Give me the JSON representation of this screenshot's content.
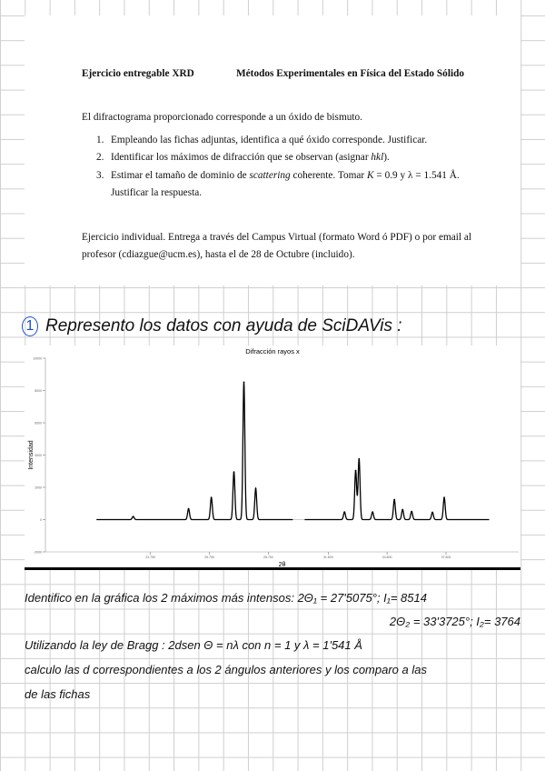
{
  "document": {
    "header_left": "Ejercicio entregable XRD",
    "header_right": "Métodos Experimentales en Física del Estado Sólido",
    "intro": "El difractograma proporcionado corresponde a un óxido de bismuto.",
    "items": [
      {
        "num": "1.",
        "text": "Empleando las fichas adjuntas, identifica a qué óxido corresponde. Justificar."
      },
      {
        "num": "2.",
        "text_a": "Identificar los máximos de difracción que se observan (asignar ",
        "text_em": "hkl",
        "text_b": ")."
      },
      {
        "num": "3.",
        "text_a": "Estimar el tamaño de dominio de ",
        "text_em": "scattering",
        "text_b": " coherente. Tomar ",
        "text_k": "K",
        "text_c": " = 0.9 y λ = 1.541 Å.",
        "text_line2": "Justificar la respuesta."
      }
    ],
    "footer_line1": "Ejercicio individual. Entrega a través del Campus Virtual (formato Word ó PDF) o por email al",
    "footer_line2": "profesor (cdiazgue@ucm.es), hasta el  de 28 de Octubre (incluido)."
  },
  "notes": {
    "step_number": "1",
    "line0": "Represento los datos con ayuda de SciDAVis :",
    "line1": "Identifico en la gráfica los 2 máximos más intensos:  2Θ₁ = 27'5075°; I₁= 8514",
    "line2": "2Θ₂ = 33'3725°; I₂= 3764",
    "line3": "Utilizando la ley de Bragg : 2dsen Θ = nλ   con n = 1  y  λ = 1'541 Å",
    "line4": "calculo las d correspondientes a los 2 ángulos anteriores y los comparo a las",
    "line5": "de las fichas",
    "circle_color": "#1a4fd6"
  },
  "chart_data": {
    "type": "line",
    "title": "Difracción rayos x",
    "xlabel": "2θ",
    "ylabel": "Intensidad",
    "xlim": [
      17.4,
      41.5
    ],
    "ylim": [
      -2000,
      10000
    ],
    "xticks": [
      "22.750",
      "25.750",
      "28.750",
      "31.800",
      "34.800",
      "37.800"
    ],
    "xtick_values": [
      22.75,
      25.75,
      28.75,
      31.8,
      34.8,
      37.8
    ],
    "yticks": [
      "-2000",
      "0",
      "2000",
      "4000",
      "6000",
      "8000",
      "10000"
    ],
    "ytick_values": [
      -2000,
      0,
      2000,
      4000,
      6000,
      8000,
      10000
    ],
    "x_range_data": [
      20,
      40
    ],
    "data_gap": [
      30.0,
      30.6
    ],
    "baseline": 0,
    "peaks": [
      {
        "x": 21.87,
        "y": 190
      },
      {
        "x": 24.69,
        "y": 670
      },
      {
        "x": 25.85,
        "y": 1360
      },
      {
        "x": 27.0,
        "y": 2950
      },
      {
        "x": 27.5075,
        "y": 8514
      },
      {
        "x": 28.11,
        "y": 1920
      },
      {
        "x": 32.63,
        "y": 470
      },
      {
        "x": 33.2,
        "y": 3040
      },
      {
        "x": 33.3725,
        "y": 3764
      },
      {
        "x": 34.06,
        "y": 470
      },
      {
        "x": 35.17,
        "y": 1230
      },
      {
        "x": 35.59,
        "y": 620
      },
      {
        "x": 36.05,
        "y": 500
      },
      {
        "x": 37.11,
        "y": 450
      },
      {
        "x": 37.71,
        "y": 1360
      }
    ],
    "grid": false,
    "legend": "none",
    "line_color": "#000000"
  }
}
